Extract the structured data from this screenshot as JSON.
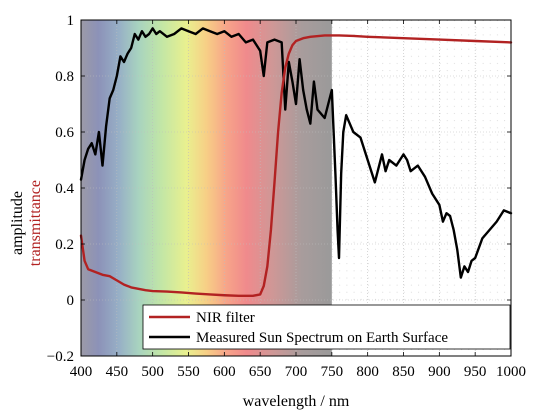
{
  "chart_data": {
    "type": "line",
    "xlabel": "wavelength / nm",
    "ylabel_black": "amplitude",
    "ylabel_red": "transmittance",
    "xlim": [
      400,
      1000
    ],
    "ylim": [
      -0.2,
      1.0
    ],
    "xticks": [
      400,
      450,
      500,
      550,
      600,
      650,
      700,
      750,
      800,
      850,
      900,
      950,
      1000
    ],
    "yticks": [
      -0.2,
      0,
      0.2,
      0.4,
      0.6,
      0.8,
      1
    ],
    "ytick_labels": [
      "−0.2",
      "0",
      "0.2",
      "0.4",
      "0.6",
      "0.8",
      "1"
    ],
    "grid": "dotted",
    "legend_placement": "bottom-right",
    "visible_spectrum_band": [
      400,
      750
    ],
    "colors": {
      "nir": "#b22222",
      "sun": "#000000",
      "red_label": "#b22222"
    },
    "series": [
      {
        "name": "NIR filter",
        "color": "#b22222",
        "x": [
          400,
          405,
          410,
          420,
          430,
          440,
          450,
          460,
          470,
          480,
          490,
          500,
          520,
          540,
          560,
          580,
          600,
          620,
          640,
          650,
          655,
          660,
          665,
          670,
          675,
          680,
          685,
          690,
          695,
          700,
          710,
          720,
          740,
          760,
          780,
          800,
          850,
          900,
          950,
          1000
        ],
        "values": [
          0.23,
          0.14,
          0.11,
          0.1,
          0.09,
          0.085,
          0.07,
          0.055,
          0.045,
          0.04,
          0.035,
          0.032,
          0.03,
          0.027,
          0.023,
          0.02,
          0.017,
          0.015,
          0.015,
          0.02,
          0.05,
          0.12,
          0.25,
          0.42,
          0.6,
          0.74,
          0.83,
          0.88,
          0.91,
          0.925,
          0.935,
          0.94,
          0.945,
          0.945,
          0.943,
          0.94,
          0.935,
          0.93,
          0.925,
          0.92
        ]
      },
      {
        "name": "Measured Sun Spectrum on Earth Surface",
        "color": "#000000",
        "x": [
          400,
          405,
          410,
          415,
          420,
          425,
          430,
          435,
          440,
          445,
          450,
          455,
          460,
          465,
          470,
          475,
          480,
          485,
          490,
          495,
          500,
          505,
          510,
          520,
          530,
          540,
          550,
          560,
          570,
          580,
          590,
          600,
          610,
          620,
          630,
          640,
          650,
          655,
          660,
          670,
          680,
          685,
          690,
          695,
          700,
          705,
          710,
          715,
          720,
          725,
          730,
          740,
          750,
          755,
          758,
          760,
          763,
          766,
          770,
          780,
          790,
          800,
          810,
          820,
          825,
          830,
          840,
          850,
          855,
          860,
          870,
          880,
          890,
          900,
          905,
          910,
          915,
          920,
          925,
          930,
          935,
          940,
          945,
          950,
          960,
          970,
          980,
          990,
          1000
        ],
        "values": [
          0.43,
          0.5,
          0.54,
          0.56,
          0.52,
          0.6,
          0.48,
          0.62,
          0.72,
          0.75,
          0.8,
          0.87,
          0.85,
          0.88,
          0.9,
          0.95,
          0.93,
          0.96,
          0.94,
          0.95,
          0.97,
          0.95,
          0.96,
          0.94,
          0.95,
          0.97,
          0.96,
          0.95,
          0.97,
          0.96,
          0.95,
          0.96,
          0.94,
          0.95,
          0.92,
          0.93,
          0.89,
          0.8,
          0.92,
          0.93,
          0.92,
          0.68,
          0.85,
          0.78,
          0.7,
          0.86,
          0.75,
          0.68,
          0.63,
          0.78,
          0.68,
          0.65,
          0.75,
          0.45,
          0.25,
          0.15,
          0.45,
          0.6,
          0.66,
          0.6,
          0.58,
          0.5,
          0.42,
          0.52,
          0.46,
          0.5,
          0.48,
          0.52,
          0.5,
          0.46,
          0.48,
          0.44,
          0.38,
          0.34,
          0.28,
          0.31,
          0.3,
          0.25,
          0.18,
          0.08,
          0.12,
          0.1,
          0.14,
          0.15,
          0.22,
          0.25,
          0.28,
          0.32,
          0.31
        ]
      }
    ]
  }
}
